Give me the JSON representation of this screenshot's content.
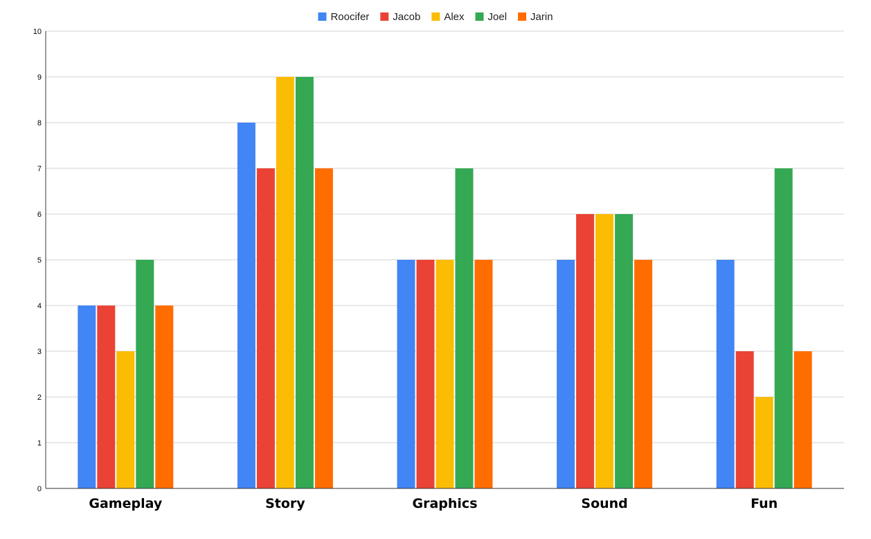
{
  "chart_data": {
    "type": "bar",
    "title": "",
    "xlabel": "",
    "ylabel": "",
    "categories": [
      "Gameplay",
      "Story",
      "Graphics",
      "Sound",
      "Fun"
    ],
    "series": [
      {
        "name": "Roocifer",
        "color": "#4285f4",
        "values": [
          4,
          8,
          5,
          5,
          5
        ]
      },
      {
        "name": "Jacob",
        "color": "#ea4335",
        "values": [
          4,
          7,
          5,
          6,
          3
        ]
      },
      {
        "name": "Alex",
        "color": "#fbbc04",
        "values": [
          3,
          9,
          5,
          6,
          2
        ]
      },
      {
        "name": "Joel",
        "color": "#34a853",
        "values": [
          5,
          9,
          7,
          6,
          7
        ]
      },
      {
        "name": "Jarin",
        "color": "#ff6d01",
        "values": [
          4,
          7,
          5,
          5,
          3
        ]
      }
    ],
    "ylim": [
      0,
      10
    ],
    "yticks": [
      "0",
      "1",
      "2",
      "3",
      "4",
      "5",
      "6",
      "7",
      "8",
      "9",
      "10"
    ],
    "grid": true,
    "legend_position": "top-center"
  }
}
